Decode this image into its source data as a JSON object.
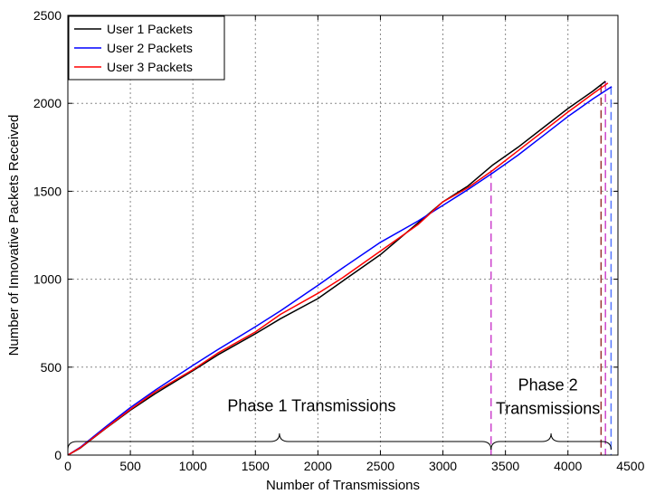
{
  "chart_data": {
    "type": "line",
    "xlabel": "Number of Transmissions",
    "ylabel": "Number of Innovative Packets Received",
    "xlim": [
      0,
      4400
    ],
    "ylim": [
      0,
      2500
    ],
    "xticks": [
      0,
      500,
      1000,
      1500,
      2000,
      2500,
      3000,
      3500,
      4000,
      4500
    ],
    "yticks": [
      0,
      500,
      1000,
      1500,
      2000,
      2500
    ],
    "grid": true,
    "legend_position": "top-left",
    "series": [
      {
        "name": "User 1 Packets",
        "color": "#000000",
        "x": [
          0,
          100,
          300,
          500,
          700,
          1000,
          1200,
          1500,
          1700,
          2000,
          2200,
          2500,
          2800,
          3000,
          3200,
          3400,
          3600,
          3800,
          4000,
          4200,
          4300
        ],
        "y": [
          0,
          40,
          150,
          255,
          350,
          480,
          570,
          690,
          775,
          890,
          990,
          1140,
          1320,
          1440,
          1530,
          1650,
          1750,
          1860,
          1970,
          2070,
          2125
        ]
      },
      {
        "name": "User 2 Packets",
        "color": "#0000ff",
        "x": [
          0,
          100,
          300,
          500,
          700,
          1000,
          1200,
          1500,
          1700,
          2000,
          2200,
          2500,
          2800,
          3000,
          3200,
          3400,
          3600,
          3800,
          4000,
          4200,
          4350
        ],
        "y": [
          0,
          45,
          160,
          270,
          370,
          510,
          600,
          730,
          820,
          965,
          1065,
          1210,
          1330,
          1420,
          1510,
          1605,
          1705,
          1815,
          1925,
          2025,
          2095
        ]
      },
      {
        "name": "User 3 Packets",
        "color": "#ff0000",
        "x": [
          0,
          100,
          300,
          500,
          700,
          1000,
          1200,
          1500,
          1700,
          2000,
          2200,
          2500,
          2800,
          3000,
          3200,
          3400,
          3600,
          3800,
          4000,
          4200,
          4320
        ],
        "y": [
          0,
          42,
          152,
          260,
          360,
          485,
          580,
          700,
          800,
          920,
          1010,
          1160,
          1310,
          1440,
          1520,
          1620,
          1730,
          1840,
          1950,
          2055,
          2115
        ]
      }
    ],
    "vertical_markers": [
      {
        "x": 3385,
        "y": 1620,
        "color": "#cc44cc"
      },
      {
        "x": 4265,
        "y": 2105,
        "color": "#993333"
      },
      {
        "x": 4300,
        "y": 2125,
        "color": "#cc44cc"
      },
      {
        "x": 4345,
        "y": 2095,
        "color": "#5577ff"
      }
    ],
    "annotations": [
      {
        "text": "Phase 1 Transmissions",
        "x": 1950,
        "y": 250,
        "brace": [
          0,
          3385
        ]
      },
      {
        "text": "Phase 2 Transmissions",
        "lines": [
          "Phase 2",
          "Transmissions"
        ],
        "x": 3840,
        "y": 300,
        "brace": [
          3385,
          4345
        ]
      }
    ]
  }
}
